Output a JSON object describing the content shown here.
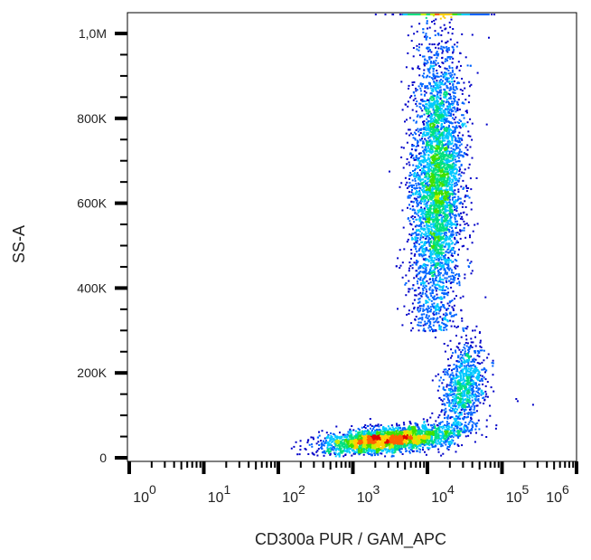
{
  "chart_data": {
    "type": "scatter",
    "style": "density dot plot (flow cytometry)",
    "xlabel": "CD300a PUR / GAM_APC",
    "ylabel": "SS-A",
    "x_scale": "log",
    "xlim": [
      1,
      1000000
    ],
    "ylim": [
      0,
      1050000
    ],
    "x_ticks": [
      {
        "base": "10",
        "exp": "0"
      },
      {
        "base": "10",
        "exp": "1"
      },
      {
        "base": "10",
        "exp": "2"
      },
      {
        "base": "10",
        "exp": "3"
      },
      {
        "base": "10",
        "exp": "4"
      },
      {
        "base": "10",
        "exp": "5"
      },
      {
        "base": "10",
        "exp": "6"
      }
    ],
    "y_ticks": [
      {
        "value": 0,
        "label": "0"
      },
      {
        "value": 200000,
        "label": "200K"
      },
      {
        "value": 400000,
        "label": "400K"
      },
      {
        "value": 600000,
        "label": "600K"
      },
      {
        "value": 800000,
        "label": "800K"
      },
      {
        "value": 1000000,
        "label": "1,0M"
      }
    ],
    "populations": [
      {
        "center_x": 13000,
        "center_y": 650000,
        "log_sd_x": 0.17,
        "sd_y": 170000,
        "count": 4200
      },
      {
        "center_x": 30000,
        "center_y": 170000,
        "log_sd_x": 0.14,
        "sd_y": 55000,
        "count": 900
      },
      {
        "center_x": 3000,
        "center_y": 45000,
        "log_sd_x": 0.45,
        "sd_y": 14000,
        "count": 2600
      },
      {
        "center_x": 15000,
        "center_y": 1050000,
        "log_sd_x": 0.3,
        "sd_y": 0,
        "count": 260
      }
    ],
    "density_colors": [
      "#0000c8",
      "#0064ff",
      "#00c8ff",
      "#00e080",
      "#40e000",
      "#c8f000",
      "#ffd000",
      "#ff6000",
      "#e00000"
    ],
    "grid": false
  }
}
